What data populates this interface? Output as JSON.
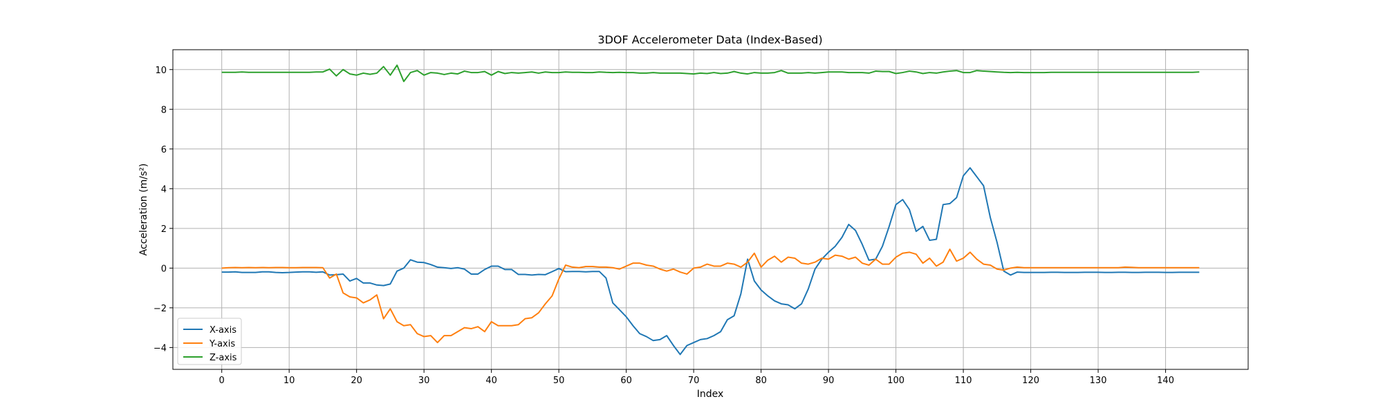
{
  "chart_data": {
    "type": "line",
    "title": "3DOF Accelerometer Data (Index-Based)",
    "xlabel": "Index",
    "ylabel": "Acceleration (m/s²)",
    "xlim": [
      -7.25,
      152.25
    ],
    "ylim": [
      -5.1,
      11.0
    ],
    "xticks": [
      0,
      10,
      20,
      30,
      40,
      50,
      60,
      70,
      80,
      90,
      100,
      110,
      120,
      130,
      140
    ],
    "yticks": [
      -4,
      -2,
      0,
      2,
      4,
      6,
      8,
      10
    ],
    "grid": true,
    "legend_position": "lower left",
    "x": [
      0,
      1,
      2,
      3,
      4,
      5,
      6,
      7,
      8,
      9,
      10,
      11,
      12,
      13,
      14,
      15,
      16,
      17,
      18,
      19,
      20,
      21,
      22,
      23,
      24,
      25,
      26,
      27,
      28,
      29,
      30,
      31,
      32,
      33,
      34,
      35,
      36,
      37,
      38,
      39,
      40,
      41,
      42,
      43,
      44,
      45,
      46,
      47,
      48,
      49,
      50,
      51,
      52,
      53,
      54,
      55,
      56,
      57,
      58,
      59,
      60,
      61,
      62,
      63,
      64,
      65,
      66,
      67,
      68,
      69,
      70,
      71,
      72,
      73,
      74,
      75,
      76,
      77,
      78,
      79,
      80,
      81,
      82,
      83,
      84,
      85,
      86,
      87,
      88,
      89,
      90,
      91,
      92,
      93,
      94,
      95,
      96,
      97,
      98,
      99,
      100,
      101,
      102,
      103,
      104,
      105,
      106,
      107,
      108,
      109,
      110,
      111,
      112,
      113,
      114,
      115,
      116,
      117,
      118,
      119,
      120,
      121,
      122,
      123,
      124,
      125,
      126,
      127,
      128,
      129,
      130,
      131,
      132,
      133,
      134,
      135,
      136,
      137,
      138,
      139,
      140,
      141,
      142,
      143,
      144,
      145
    ],
    "series": [
      {
        "name": "X-axis",
        "color": "#1f77b4",
        "values": [
          -0.2,
          -0.2,
          -0.19,
          -0.22,
          -0.22,
          -0.22,
          -0.19,
          -0.19,
          -0.22,
          -0.23,
          -0.22,
          -0.2,
          -0.19,
          -0.19,
          -0.21,
          -0.19,
          -0.35,
          -0.33,
          -0.3,
          -0.65,
          -0.52,
          -0.75,
          -0.75,
          -0.85,
          -0.88,
          -0.8,
          -0.15,
          0.0,
          0.42,
          0.3,
          0.28,
          0.18,
          0.05,
          0.02,
          -0.02,
          0.02,
          -0.05,
          -0.3,
          -0.3,
          -0.07,
          0.1,
          0.1,
          -0.07,
          -0.07,
          -0.32,
          -0.32,
          -0.35,
          -0.32,
          -0.33,
          -0.18,
          -0.02,
          -0.18,
          -0.17,
          -0.17,
          -0.19,
          -0.17,
          -0.17,
          -0.5,
          -1.75,
          -2.1,
          -2.45,
          -2.9,
          -3.3,
          -3.45,
          -3.65,
          -3.6,
          -3.4,
          -3.9,
          -4.35,
          -3.9,
          -3.75,
          -3.6,
          -3.55,
          -3.4,
          -3.2,
          -2.6,
          -2.4,
          -1.3,
          0.45,
          -0.65,
          -1.1,
          -1.4,
          -1.65,
          -1.8,
          -1.85,
          -2.05,
          -1.8,
          -1.05,
          -0.05,
          0.45,
          0.8,
          1.1,
          1.55,
          2.2,
          1.9,
          1.2,
          0.4,
          0.45,
          1.1,
          2.1,
          3.2,
          3.45,
          2.95,
          1.85,
          2.1,
          1.4,
          1.45,
          3.2,
          3.25,
          3.55,
          4.65,
          5.05,
          4.6,
          4.15,
          2.55,
          1.3,
          -0.15,
          -0.35,
          -0.2,
          -0.22,
          -0.22,
          -0.22,
          -0.22,
          -0.21,
          -0.21,
          -0.22,
          -0.22,
          -0.22,
          -0.21,
          -0.21,
          -0.21,
          -0.22,
          -0.22,
          -0.21,
          -0.21,
          -0.22,
          -0.22,
          -0.21,
          -0.21,
          -0.21,
          -0.22,
          -0.22,
          -0.21,
          -0.21,
          -0.21,
          -0.21
        ]
      },
      {
        "name": "Y-axis",
        "color": "#ff7f0e",
        "values": [
          0.0,
          0.02,
          0.03,
          0.02,
          0.03,
          0.02,
          0.03,
          0.02,
          0.03,
          0.03,
          0.02,
          0.02,
          0.03,
          0.03,
          0.03,
          0.02,
          -0.5,
          -0.3,
          -1.25,
          -1.45,
          -1.5,
          -1.75,
          -1.6,
          -1.35,
          -2.55,
          -2.05,
          -2.7,
          -2.9,
          -2.85,
          -3.3,
          -3.45,
          -3.4,
          -3.75,
          -3.4,
          -3.4,
          -3.2,
          -3.0,
          -3.05,
          -2.95,
          -3.2,
          -2.7,
          -2.9,
          -2.9,
          -2.9,
          -2.85,
          -2.55,
          -2.5,
          -2.25,
          -1.8,
          -1.4,
          -0.55,
          0.15,
          0.05,
          0.02,
          0.08,
          0.08,
          0.05,
          0.05,
          0.02,
          -0.05,
          0.1,
          0.25,
          0.25,
          0.15,
          0.1,
          -0.05,
          -0.15,
          -0.05,
          -0.2,
          -0.3,
          0.0,
          0.05,
          0.2,
          0.1,
          0.1,
          0.25,
          0.2,
          0.05,
          0.3,
          0.75,
          0.05,
          0.4,
          0.6,
          0.3,
          0.55,
          0.5,
          0.25,
          0.2,
          0.3,
          0.5,
          0.45,
          0.65,
          0.6,
          0.45,
          0.55,
          0.25,
          0.15,
          0.45,
          0.2,
          0.2,
          0.55,
          0.75,
          0.8,
          0.7,
          0.25,
          0.5,
          0.1,
          0.3,
          0.95,
          0.35,
          0.5,
          0.8,
          0.45,
          0.2,
          0.15,
          -0.05,
          -0.1,
          0.0,
          0.05,
          0.02,
          0.02,
          0.02,
          0.02,
          0.02,
          0.02,
          0.02,
          0.02,
          0.02,
          0.02,
          0.02,
          0.02,
          0.02,
          0.02,
          0.02,
          0.05,
          0.04,
          0.02,
          0.02,
          0.02,
          0.02,
          0.02,
          0.02,
          0.02,
          0.02,
          0.02,
          0.02
        ]
      },
      {
        "name": "Z-axis",
        "color": "#2ca02c",
        "values": [
          9.86,
          9.86,
          9.86,
          9.88,
          9.86,
          9.86,
          9.86,
          9.86,
          9.86,
          9.86,
          9.86,
          9.86,
          9.86,
          9.86,
          9.88,
          9.88,
          10.02,
          9.68,
          10.0,
          9.78,
          9.72,
          9.82,
          9.76,
          9.82,
          10.15,
          9.72,
          10.22,
          9.4,
          9.85,
          9.95,
          9.72,
          9.85,
          9.82,
          9.75,
          9.82,
          9.78,
          9.92,
          9.85,
          9.85,
          9.9,
          9.72,
          9.9,
          9.8,
          9.85,
          9.82,
          9.85,
          9.88,
          9.82,
          9.88,
          9.85,
          9.85,
          9.88,
          9.86,
          9.86,
          9.85,
          9.85,
          9.88,
          9.86,
          9.85,
          9.86,
          9.85,
          9.85,
          9.82,
          9.82,
          9.85,
          9.82,
          9.82,
          9.82,
          9.82,
          9.8,
          9.78,
          9.82,
          9.8,
          9.85,
          9.8,
          9.82,
          9.9,
          9.82,
          9.78,
          9.85,
          9.82,
          9.82,
          9.85,
          9.95,
          9.82,
          9.82,
          9.82,
          9.85,
          9.82,
          9.85,
          9.88,
          9.88,
          9.88,
          9.85,
          9.85,
          9.85,
          9.82,
          9.92,
          9.9,
          9.9,
          9.8,
          9.85,
          9.92,
          9.88,
          9.8,
          9.85,
          9.82,
          9.88,
          9.92,
          9.95,
          9.85,
          9.85,
          9.95,
          9.92,
          9.9,
          9.88,
          9.86,
          9.85,
          9.86,
          9.85,
          9.85,
          9.85,
          9.85,
          9.86,
          9.86,
          9.86,
          9.86,
          9.86,
          9.86,
          9.86,
          9.86,
          9.86,
          9.86,
          9.86,
          9.86,
          9.86,
          9.86,
          9.86,
          9.86,
          9.86,
          9.86,
          9.86,
          9.86,
          9.86,
          9.86,
          9.88
        ]
      }
    ]
  },
  "style": {
    "grid_color": "#b0b0b0",
    "axis_color": "#000000",
    "background": "#ffffff"
  }
}
